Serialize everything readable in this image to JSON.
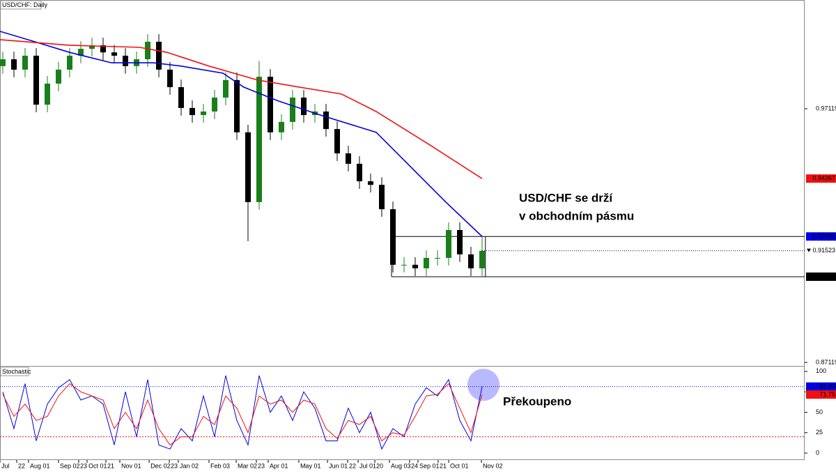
{
  "chart_data": [
    {
      "type": "candlestick",
      "title": "USD/CHF: Daily",
      "annotation": [
        "USD/CHF se drží",
        "v obchodním pásmu"
      ],
      "up_color": "#1a7f1a",
      "down_color": "#000000",
      "open": [
        0.988,
        0.9907,
        0.9866,
        0.9921,
        0.9728,
        0.9811,
        0.9866,
        0.9921,
        0.9948,
        0.9962,
        0.9934,
        0.9921,
        0.988,
        0.9907,
        0.9976,
        0.9866,
        0.9797,
        0.9715,
        0.9687,
        0.9701,
        0.9756,
        0.9825,
        0.9619,
        0.9344,
        0.9838,
        0.9619,
        0.966,
        0.9756,
        0.9687,
        0.9701,
        0.9632,
        0.9536,
        0.9495,
        0.9426,
        0.9412,
        0.9316,
        0.9097,
        0.9097,
        0.9083,
        0.9124,
        0.9124,
        0.9234,
        0.9138,
        0.9083
      ],
      "high": [
        0.9937,
        0.9937,
        0.9951,
        0.9951,
        0.9841,
        0.9896,
        0.9951,
        0.9978,
        0.9992,
        0.9992,
        0.9964,
        0.9951,
        0.9937,
        1.0006,
        1.0006,
        0.9896,
        0.9827,
        0.9745,
        0.9731,
        0.9786,
        0.9855,
        0.9855,
        0.9649,
        0.99,
        0.9868,
        0.969,
        0.9786,
        0.9786,
        0.9731,
        0.9731,
        0.9662,
        0.9566,
        0.9525,
        0.9456,
        0.9442,
        0.9346,
        0.9127,
        0.9127,
        0.9154,
        0.9154,
        0.9264,
        0.9264,
        0.9168,
        0.9208
      ],
      "low": [
        0.985,
        0.9836,
        0.9836,
        0.9698,
        0.9698,
        0.9781,
        0.9836,
        0.9891,
        0.9918,
        0.9904,
        0.9891,
        0.985,
        0.985,
        0.9877,
        0.9836,
        0.9767,
        0.9685,
        0.9657,
        0.9657,
        0.9671,
        0.9726,
        0.9589,
        0.919,
        0.9314,
        0.9589,
        0.9589,
        0.963,
        0.9657,
        0.9657,
        0.9602,
        0.9506,
        0.9465,
        0.9396,
        0.9382,
        0.9286,
        0.9067,
        0.9067,
        0.9053,
        0.9053,
        0.9094,
        0.9094,
        0.9108,
        0.9053,
        0.9053
      ],
      "close": [
        0.9907,
        0.9866,
        0.9921,
        0.9728,
        0.9811,
        0.9866,
        0.9921,
        0.9948,
        0.9962,
        0.9934,
        0.9921,
        0.988,
        0.9907,
        0.9976,
        0.9866,
        0.9797,
        0.9715,
        0.9687,
        0.9701,
        0.9756,
        0.9825,
        0.9619,
        0.9344,
        0.9838,
        0.9619,
        0.966,
        0.9756,
        0.9687,
        0.9701,
        0.9632,
        0.9536,
        0.9495,
        0.9426,
        0.9412,
        0.9316,
        0.9097,
        0.9097,
        0.9083,
        0.9124,
        0.9124,
        0.9234,
        0.9138,
        0.9083,
        0.9152
      ],
      "series": [
        {
          "color": "#0000dd",
          "x": [
            -0.25,
            2.875,
            6,
            9.75,
            13.5,
            16,
            19.75,
            21.625,
            24.75,
            28.5,
            33.5,
            36,
            39.75,
            43
          ],
          "values": [
            1.0017,
            0.9976,
            0.9934,
            0.9893,
            0.9893,
            0.988,
            0.9852,
            0.9797,
            0.9742,
            0.9687,
            0.9619,
            0.9509,
            0.9344,
            0.92085
          ]
        },
        {
          "color": "#ee1111",
          "x": [
            -0.25,
            6,
            12.25,
            14.75,
            18.5,
            22.875,
            26.625,
            30.375,
            33.5,
            38.5,
            43
          ],
          "values": [
            0.9984,
            0.9962,
            0.9954,
            0.9934,
            0.988,
            0.9825,
            0.9797,
            0.977,
            0.9701,
            0.9564,
            0.94367
          ]
        }
      ],
      "box": {
        "x": [
          34.875,
          43.3
        ],
        "y": [
          0.905,
          0.92085
        ]
      },
      "price_tags": [
        {
          "value": 0.94367,
          "color": "#ee1111"
        },
        {
          "value": 0.92085,
          "color": "#0000dd"
        },
        {
          "value": 0.91523,
          "color": "#ffffff",
          "line": "dotted"
        },
        {
          "value": 0.905,
          "label": "0.90500",
          "color": "#000000"
        }
      ],
      "xlim": [
        -0.25,
        71.94
      ],
      "ylim": [
        0.86982,
        1.01405
      ],
      "yticks": [
        0.97119,
        0.87119
      ]
    },
    {
      "type": "stochastic",
      "title": "Stochastic",
      "annotation": "Překoupeno",
      "series": [
        {
          "color": "#0000dd",
          "values": [
            75,
            30,
            85,
            15,
            60,
            80,
            90,
            65,
            70,
            60,
            10,
            75,
            20,
            90,
            10,
            5,
            30,
            15,
            70,
            20,
            95,
            40,
            10,
            95,
            50,
            70,
            40,
            75,
            55,
            15,
            15,
            55,
            25,
            50,
            5,
            30,
            20,
            60,
            80,
            70,
            90,
            40,
            15,
            81.43
          ]
        },
        {
          "color": "#ee1111",
          "values": [
            72,
            45,
            60,
            40,
            45,
            70,
            85,
            75,
            70,
            65,
            30,
            50,
            30,
            65,
            30,
            10,
            20,
            20,
            45,
            35,
            70,
            55,
            25,
            70,
            60,
            65,
            50,
            65,
            60,
            30,
            18,
            40,
            35,
            45,
            15,
            25,
            22,
            45,
            70,
            72,
            85,
            55,
            25,
            71.75
          ]
        }
      ],
      "levels": [
        {
          "value": 20,
          "color": "#ee1111"
        }
      ],
      "price_tags": [
        {
          "value": 81.43,
          "color": "#0000dd",
          "line": "dotted"
        },
        {
          "value": 71.75,
          "color": "#ee1111"
        }
      ],
      "xlim": [
        -0.25,
        71.94
      ],
      "ylim": [
        -8.5,
        105
      ],
      "yticks": [
        100,
        75,
        50,
        25,
        0
      ],
      "xticks": [
        {
          "value": -0.25,
          "label": "Jul"
        },
        {
          "value": 1.25,
          "label": "22"
        },
        {
          "value": 2.31,
          "label": "Aug 01"
        },
        {
          "value": 5,
          "label": "Sep 02"
        },
        {
          "value": 6.81,
          "label": "23"
        },
        {
          "value": 7.56,
          "label": "Oct 01"
        },
        {
          "value": 9.25,
          "label": "21"
        },
        {
          "value": 10.5,
          "label": "Nov 01"
        },
        {
          "value": 13.13,
          "label": "Dec 02"
        },
        {
          "value": 14.94,
          "label": "23"
        },
        {
          "value": 15.75,
          "label": "Jan 02"
        },
        {
          "value": 18.5,
          "label": "Feb 03"
        },
        {
          "value": 20.94,
          "label": "Mar 02"
        },
        {
          "value": 22.75,
          "label": "23"
        },
        {
          "value": 23.81,
          "label": "Apr 01"
        },
        {
          "value": 26.56,
          "label": "May 01"
        },
        {
          "value": 29.13,
          "label": "Jun 01"
        },
        {
          "value": 30.94,
          "label": "22"
        },
        {
          "value": 31.88,
          "label": "Jul 01"
        },
        {
          "value": 33.38,
          "label": "20"
        },
        {
          "value": 34.69,
          "label": "Aug 03"
        },
        {
          "value": 36.5,
          "label": "24"
        },
        {
          "value": 37.25,
          "label": "Sep 01"
        },
        {
          "value": 39.06,
          "label": "21"
        },
        {
          "value": 40,
          "label": "Oct 01"
        },
        {
          "value": 42.94,
          "label": "Nov 02"
        }
      ]
    }
  ]
}
